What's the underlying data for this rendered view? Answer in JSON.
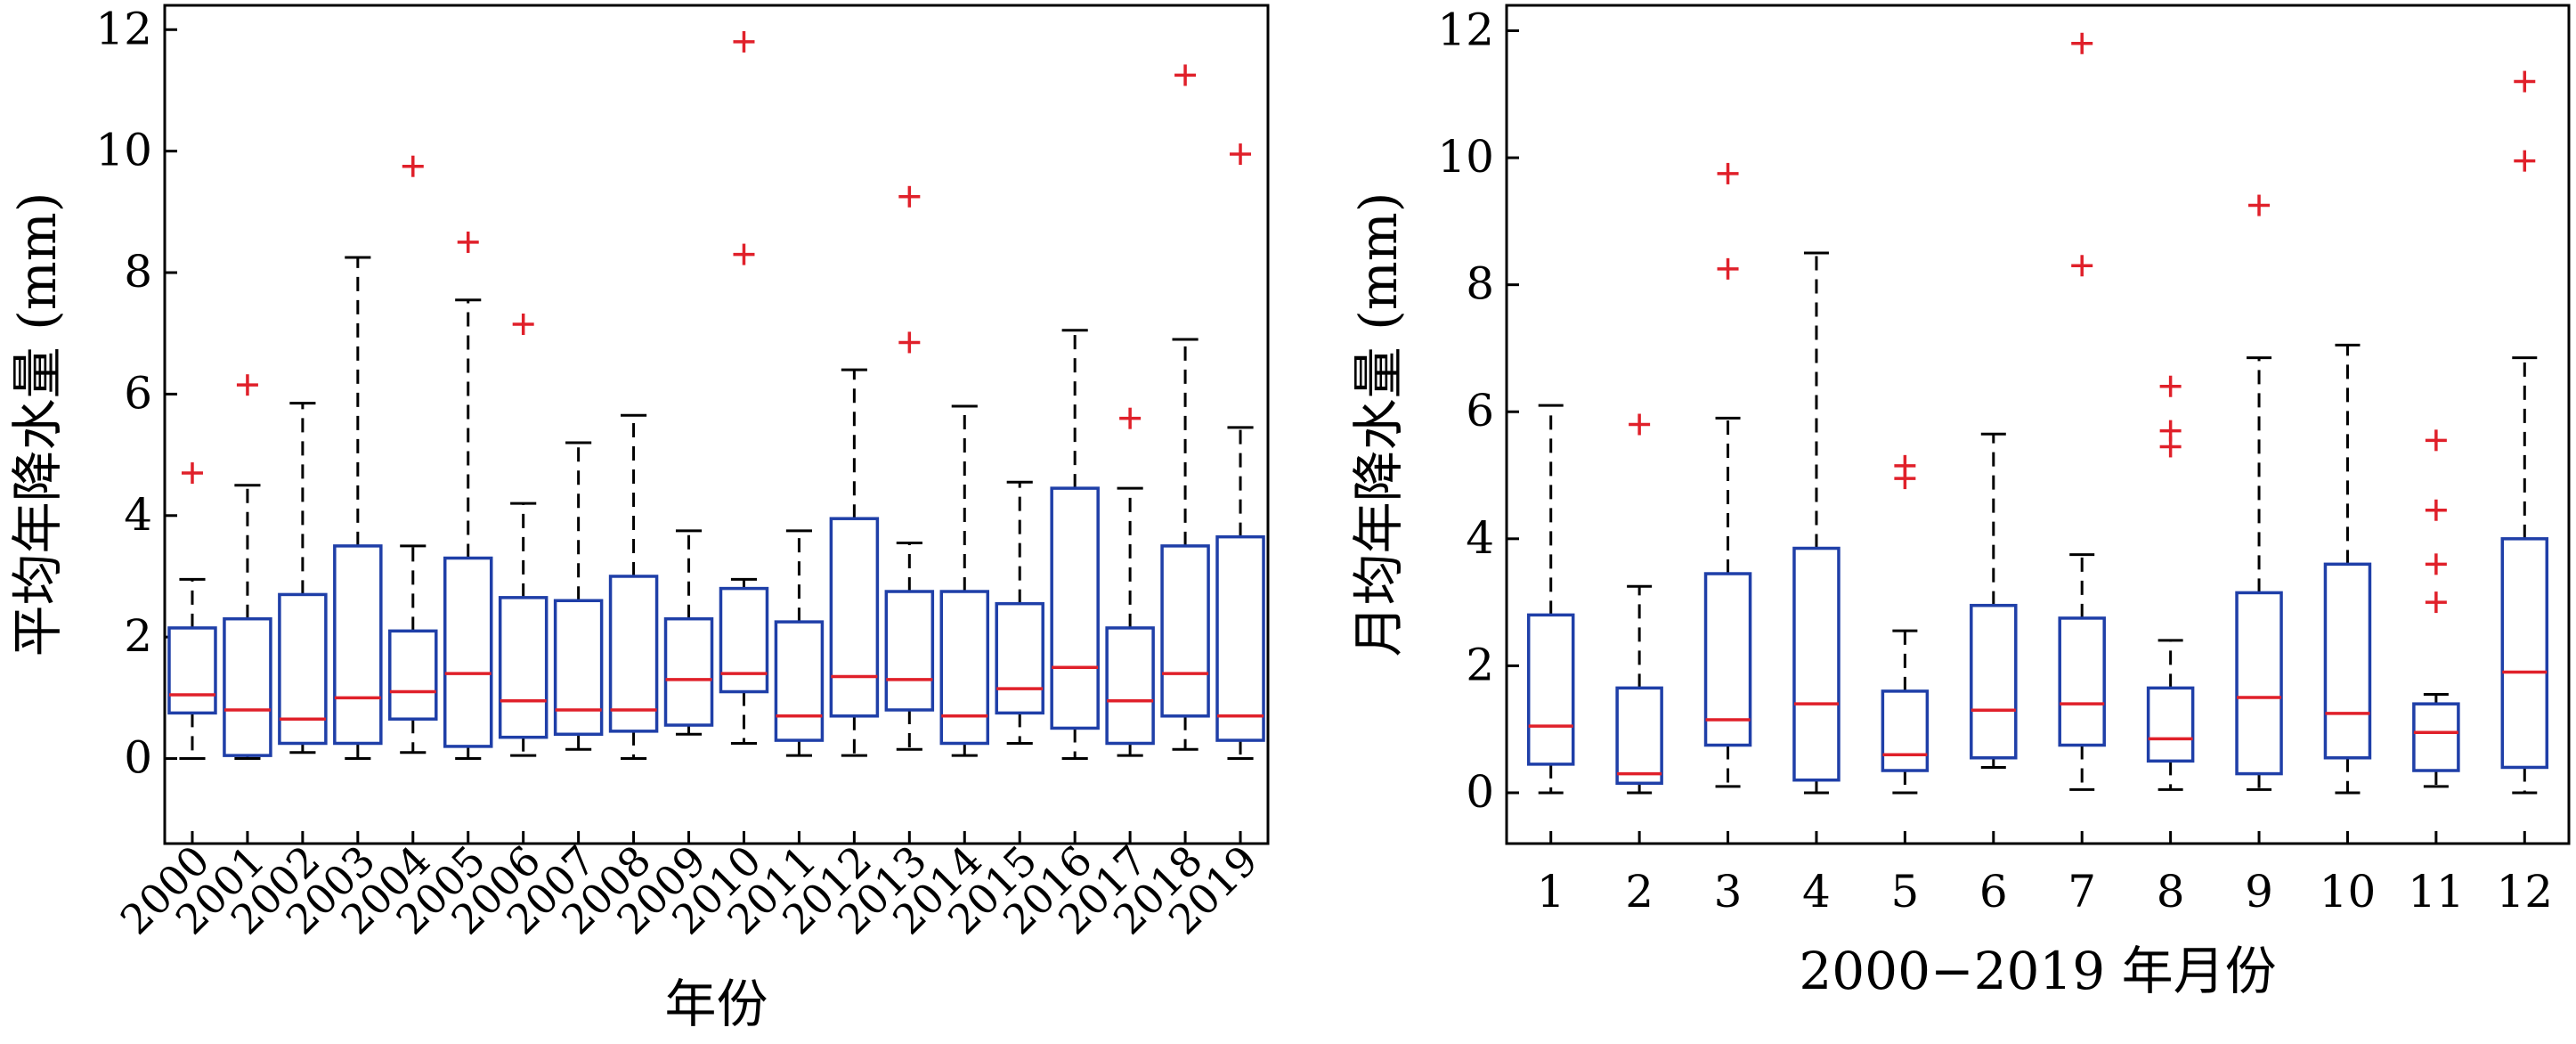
{
  "chart_data": [
    {
      "type": "box",
      "title": "",
      "xlabel": "年份",
      "ylabel": "平均年降水量 (mm)",
      "ylim": [
        -1.4,
        12.4
      ],
      "yticks": [
        0,
        2,
        4,
        6,
        8,
        10,
        12
      ],
      "categories": [
        "2000",
        "2001",
        "2002",
        "2003",
        "2004",
        "2005",
        "2006",
        "2007",
        "2008",
        "2009",
        "2010",
        "2011",
        "2012",
        "2013",
        "2014",
        "2015",
        "2016",
        "2017",
        "2018",
        "2019"
      ],
      "boxes": [
        {
          "whisker_low": 0.0,
          "q1": 0.75,
          "median": 1.05,
          "q3": 2.15,
          "whisker_high": 2.95,
          "outliers": [
            4.7
          ]
        },
        {
          "whisker_low": 0.0,
          "q1": 0.05,
          "median": 0.8,
          "q3": 2.3,
          "whisker_high": 4.5,
          "outliers": [
            6.15
          ]
        },
        {
          "whisker_low": 0.1,
          "q1": 0.25,
          "median": 0.65,
          "q3": 2.7,
          "whisker_high": 5.85,
          "outliers": []
        },
        {
          "whisker_low": 0.0,
          "q1": 0.25,
          "median": 1.0,
          "q3": 3.5,
          "whisker_high": 8.25,
          "outliers": []
        },
        {
          "whisker_low": 0.1,
          "q1": 0.65,
          "median": 1.1,
          "q3": 2.1,
          "whisker_high": 3.5,
          "outliers": [
            9.75
          ]
        },
        {
          "whisker_low": 0.0,
          "q1": 0.2,
          "median": 1.4,
          "q3": 3.3,
          "whisker_high": 7.55,
          "outliers": [
            8.5
          ]
        },
        {
          "whisker_low": 0.05,
          "q1": 0.35,
          "median": 0.95,
          "q3": 2.65,
          "whisker_high": 4.2,
          "outliers": [
            7.15
          ]
        },
        {
          "whisker_low": 0.15,
          "q1": 0.4,
          "median": 0.8,
          "q3": 2.6,
          "whisker_high": 5.2,
          "outliers": []
        },
        {
          "whisker_low": 0.0,
          "q1": 0.45,
          "median": 0.8,
          "q3": 3.0,
          "whisker_high": 5.65,
          "outliers": []
        },
        {
          "whisker_low": 0.4,
          "q1": 0.55,
          "median": 1.3,
          "q3": 2.3,
          "whisker_high": 3.75,
          "outliers": []
        },
        {
          "whisker_low": 0.25,
          "q1": 1.1,
          "median": 1.4,
          "q3": 2.8,
          "whisker_high": 2.95,
          "outliers": [
            8.3,
            11.8
          ]
        },
        {
          "whisker_low": 0.05,
          "q1": 0.3,
          "median": 0.7,
          "q3": 2.25,
          "whisker_high": 3.75,
          "outliers": []
        },
        {
          "whisker_low": 0.05,
          "q1": 0.7,
          "median": 1.35,
          "q3": 3.95,
          "whisker_high": 6.4,
          "outliers": []
        },
        {
          "whisker_low": 0.15,
          "q1": 0.8,
          "median": 1.3,
          "q3": 2.75,
          "whisker_high": 3.55,
          "outliers": [
            6.85,
            9.25
          ]
        },
        {
          "whisker_low": 0.05,
          "q1": 0.25,
          "median": 0.7,
          "q3": 2.75,
          "whisker_high": 5.8,
          "outliers": []
        },
        {
          "whisker_low": 0.25,
          "q1": 0.75,
          "median": 1.15,
          "q3": 2.55,
          "whisker_high": 4.55,
          "outliers": []
        },
        {
          "whisker_low": 0.0,
          "q1": 0.5,
          "median": 1.5,
          "q3": 4.45,
          "whisker_high": 7.05,
          "outliers": []
        },
        {
          "whisker_low": 0.05,
          "q1": 0.25,
          "median": 0.95,
          "q3": 2.15,
          "whisker_high": 4.45,
          "outliers": [
            5.6
          ]
        },
        {
          "whisker_low": 0.15,
          "q1": 0.7,
          "median": 1.4,
          "q3": 3.5,
          "whisker_high": 6.9,
          "outliers": [
            11.25
          ]
        },
        {
          "whisker_low": 0.0,
          "q1": 0.3,
          "median": 0.7,
          "q3": 3.65,
          "whisker_high": 5.45,
          "outliers": [
            9.95
          ]
        }
      ]
    },
    {
      "type": "box",
      "title": "",
      "xlabel": "2000−2019 年月份",
      "ylabel": "月均年降水量 (mm)",
      "ylim": [
        -0.8,
        12.4
      ],
      "yticks": [
        0,
        2,
        4,
        6,
        8,
        10,
        12
      ],
      "categories": [
        "1",
        "2",
        "3",
        "4",
        "5",
        "6",
        "7",
        "8",
        "9",
        "10",
        "11",
        "12"
      ],
      "boxes": [
        {
          "whisker_low": 0.0,
          "q1": 0.45,
          "median": 1.05,
          "q3": 2.8,
          "whisker_high": 6.1,
          "outliers": []
        },
        {
          "whisker_low": 0.0,
          "q1": 0.15,
          "median": 0.3,
          "q3": 1.65,
          "whisker_high": 3.25,
          "outliers": [
            5.8
          ]
        },
        {
          "whisker_low": 0.1,
          "q1": 0.75,
          "median": 1.15,
          "q3": 3.45,
          "whisker_high": 5.9,
          "outliers": [
            8.25,
            9.75
          ]
        },
        {
          "whisker_low": 0.0,
          "q1": 0.2,
          "median": 1.4,
          "q3": 3.85,
          "whisker_high": 8.5,
          "outliers": []
        },
        {
          "whisker_low": 0.0,
          "q1": 0.35,
          "median": 0.6,
          "q3": 1.6,
          "whisker_high": 2.55,
          "outliers": [
            4.95,
            5.15
          ]
        },
        {
          "whisker_low": 0.4,
          "q1": 0.55,
          "median": 1.3,
          "q3": 2.95,
          "whisker_high": 5.65,
          "outliers": []
        },
        {
          "whisker_low": 0.05,
          "q1": 0.75,
          "median": 1.4,
          "q3": 2.75,
          "whisker_high": 3.75,
          "outliers": [
            8.3,
            11.8
          ]
        },
        {
          "whisker_low": 0.05,
          "q1": 0.5,
          "median": 0.85,
          "q3": 1.65,
          "whisker_high": 2.4,
          "outliers": [
            5.45,
            5.7,
            6.4
          ]
        },
        {
          "whisker_low": 0.05,
          "q1": 0.3,
          "median": 1.5,
          "q3": 3.15,
          "whisker_high": 6.85,
          "outliers": [
            9.25
          ]
        },
        {
          "whisker_low": 0.0,
          "q1": 0.55,
          "median": 1.25,
          "q3": 3.6,
          "whisker_high": 7.05,
          "outliers": []
        },
        {
          "whisker_low": 0.1,
          "q1": 0.35,
          "median": 0.95,
          "q3": 1.4,
          "whisker_high": 1.55,
          "outliers": [
            3.0,
            3.6,
            4.45,
            5.55
          ]
        },
        {
          "whisker_low": 0.0,
          "q1": 0.4,
          "median": 1.9,
          "q3": 4.0,
          "whisker_high": 6.85,
          "outliers": [
            9.95,
            11.2
          ]
        }
      ]
    }
  ],
  "colors": {
    "box": "#1f3fa8",
    "median": "#e0202a",
    "outlier": "#e0202a",
    "whisker": "#000000",
    "axis": "#000000"
  }
}
